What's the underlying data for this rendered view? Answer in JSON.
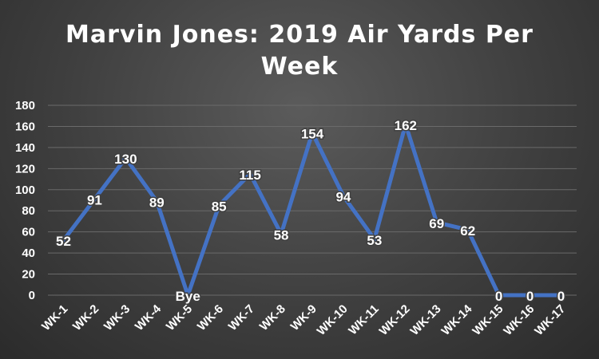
{
  "chart_data": {
    "type": "line",
    "title": "Marvin Jones: 2019 Air Yards Per Week",
    "categories": [
      "WK-1",
      "WK-2",
      "WK-3",
      "WK-4",
      "WK-5",
      "WK-6",
      "WK-7",
      "WK-8",
      "WK-9",
      "WK-10",
      "WK-11",
      "WK-12",
      "WK-13",
      "WK-14",
      "WK-15",
      "WK-16",
      "WK-17"
    ],
    "values": [
      52,
      91,
      130,
      89,
      0,
      85,
      115,
      58,
      154,
      94,
      53,
      162,
      69,
      62,
      0,
      0,
      0
    ],
    "data_labels": [
      "52",
      "91",
      "130",
      "89",
      "Bye",
      "85",
      "115",
      "58",
      "154",
      "94",
      "53",
      "162",
      "69",
      "62",
      "0",
      "0",
      "0"
    ],
    "y_ticks": [
      "0",
      "20",
      "40",
      "60",
      "80",
      "100",
      "120",
      "140",
      "160",
      "180"
    ],
    "ylim": [
      0,
      180
    ],
    "xlabel": "",
    "ylabel": "",
    "grid": true,
    "legend": "none",
    "line_color": "#4472c4",
    "grid_color": "#6a6a6a",
    "text_color": "#ffffff"
  }
}
